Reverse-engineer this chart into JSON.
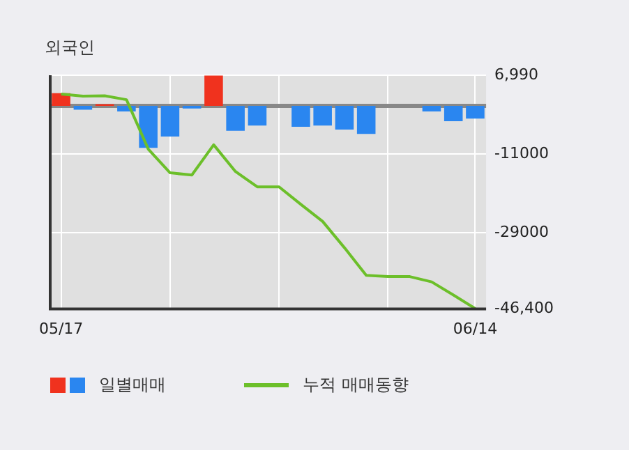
{
  "chart_data": {
    "type": "bar",
    "title": "외국인",
    "categories": [
      "05/17",
      null,
      null,
      null,
      null,
      null,
      null,
      null,
      null,
      null,
      null,
      null,
      null,
      null,
      null,
      null,
      null,
      null,
      null,
      "06/14"
    ],
    "series": [
      {
        "name": "일별매매",
        "colors": [
          "#f0321e",
          "#2a86f0",
          "#f0321e",
          "#2a86f0",
          "#2a86f0",
          "#2a86f0",
          "#2a86f0",
          "#f0321e",
          "#2a86f0",
          "#2a86f0",
          "#2a86f0",
          "#2a86f0",
          "#2a86f0",
          "#2a86f0",
          "#2a86f0",
          "#2a86f0",
          "#2a86f0",
          "#2a86f0",
          "#2a86f0",
          "#2a86f0"
        ],
        "values": [
          2900,
          -900,
          400,
          -1300,
          -9600,
          -7000,
          -600,
          6900,
          -5700,
          -4500,
          0,
          -4800,
          -4500,
          -5400,
          -6400,
          0,
          0,
          -1300,
          -3500,
          -2900
        ]
      },
      {
        "name": "누적 매매동향",
        "type": "line",
        "color": "#6cbf2a",
        "values": [
          2700,
          2200,
          2300,
          1400,
          -9900,
          -15300,
          -15800,
          -8900,
          -15000,
          -18500,
          -18500,
          -22500,
          -26400,
          -32400,
          -38700,
          -39000,
          -39000,
          -40200,
          -43200,
          -46300
        ]
      }
    ],
    "ylim": [
      -46400,
      6990
    ],
    "yticks": [
      {
        "value": 6990,
        "label": "6,990"
      },
      {
        "value": -11000,
        "label": "-11000"
      },
      {
        "value": -29000,
        "label": "-29000"
      },
      {
        "value": -46400,
        "label": "-46,400"
      }
    ],
    "ref_lines": [
      {
        "axis": "y",
        "value": 0,
        "color": "#888888"
      }
    ],
    "grid": true,
    "legend": "bottom",
    "marker": "none",
    "line_style": "solid"
  }
}
